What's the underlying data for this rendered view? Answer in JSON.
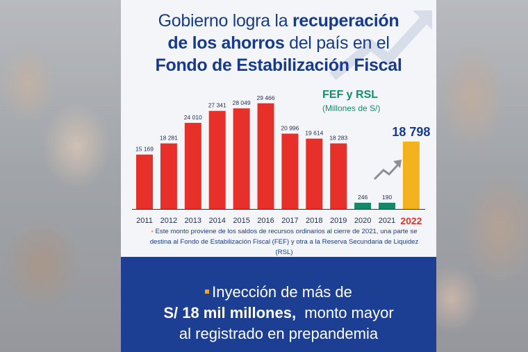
{
  "title": {
    "line1_normal": "Gobierno logra la ",
    "line1_bold": "recuperación",
    "line2_bold": "de los ahorros",
    "line2_normal": " del país en el",
    "line3_bold": "Fondo de Estabilización Fiscal"
  },
  "legend": {
    "label": "FEF y RSL",
    "unit": "(Millones de S/)"
  },
  "note": {
    "bullet": "•",
    "text": " Este monto proviene de los saldos de recursos ordinarios al cierre de 2021, una parte se destina al Fondo de Estabilización Fiscal (FEF) y otra a la Reserva Secundaria de Liquidez (RSL)"
  },
  "footer": {
    "line1": "Inyección de más de",
    "line2_bold": "S/ 18 mil millones,",
    "line2_normal": "  monto mayor",
    "line3": "al registrado en prepandemia"
  },
  "colors": {
    "red": "#e8302b",
    "green": "#13896a",
    "gold": "#f5b21f",
    "navy": "#173b8c"
  },
  "chart_data": {
    "type": "bar",
    "title": "FEF y RSL",
    "ylabel": "(Millones de S/)",
    "categories": [
      "2011",
      "2012",
      "2013",
      "2014",
      "2015",
      "2016",
      "2017",
      "2018",
      "2019",
      "2020",
      "2021",
      "2022"
    ],
    "values": [
      15169,
      18281,
      24010,
      27341,
      28049,
      29466,
      20996,
      19614,
      18283,
      246,
      190,
      18798
    ],
    "value_labels": [
      "15 169",
      "18 281",
      "24 010",
      "27 341",
      "28 049",
      "29 466",
      "20 996",
      "19 614",
      "18 283",
      "246",
      "190",
      "18 798"
    ],
    "ylim": [
      0,
      30000
    ],
    "grid": false,
    "bar_groups": [
      "red",
      "red",
      "red",
      "red",
      "red",
      "red",
      "red",
      "red",
      "red",
      "green",
      "green",
      "gold"
    ]
  }
}
